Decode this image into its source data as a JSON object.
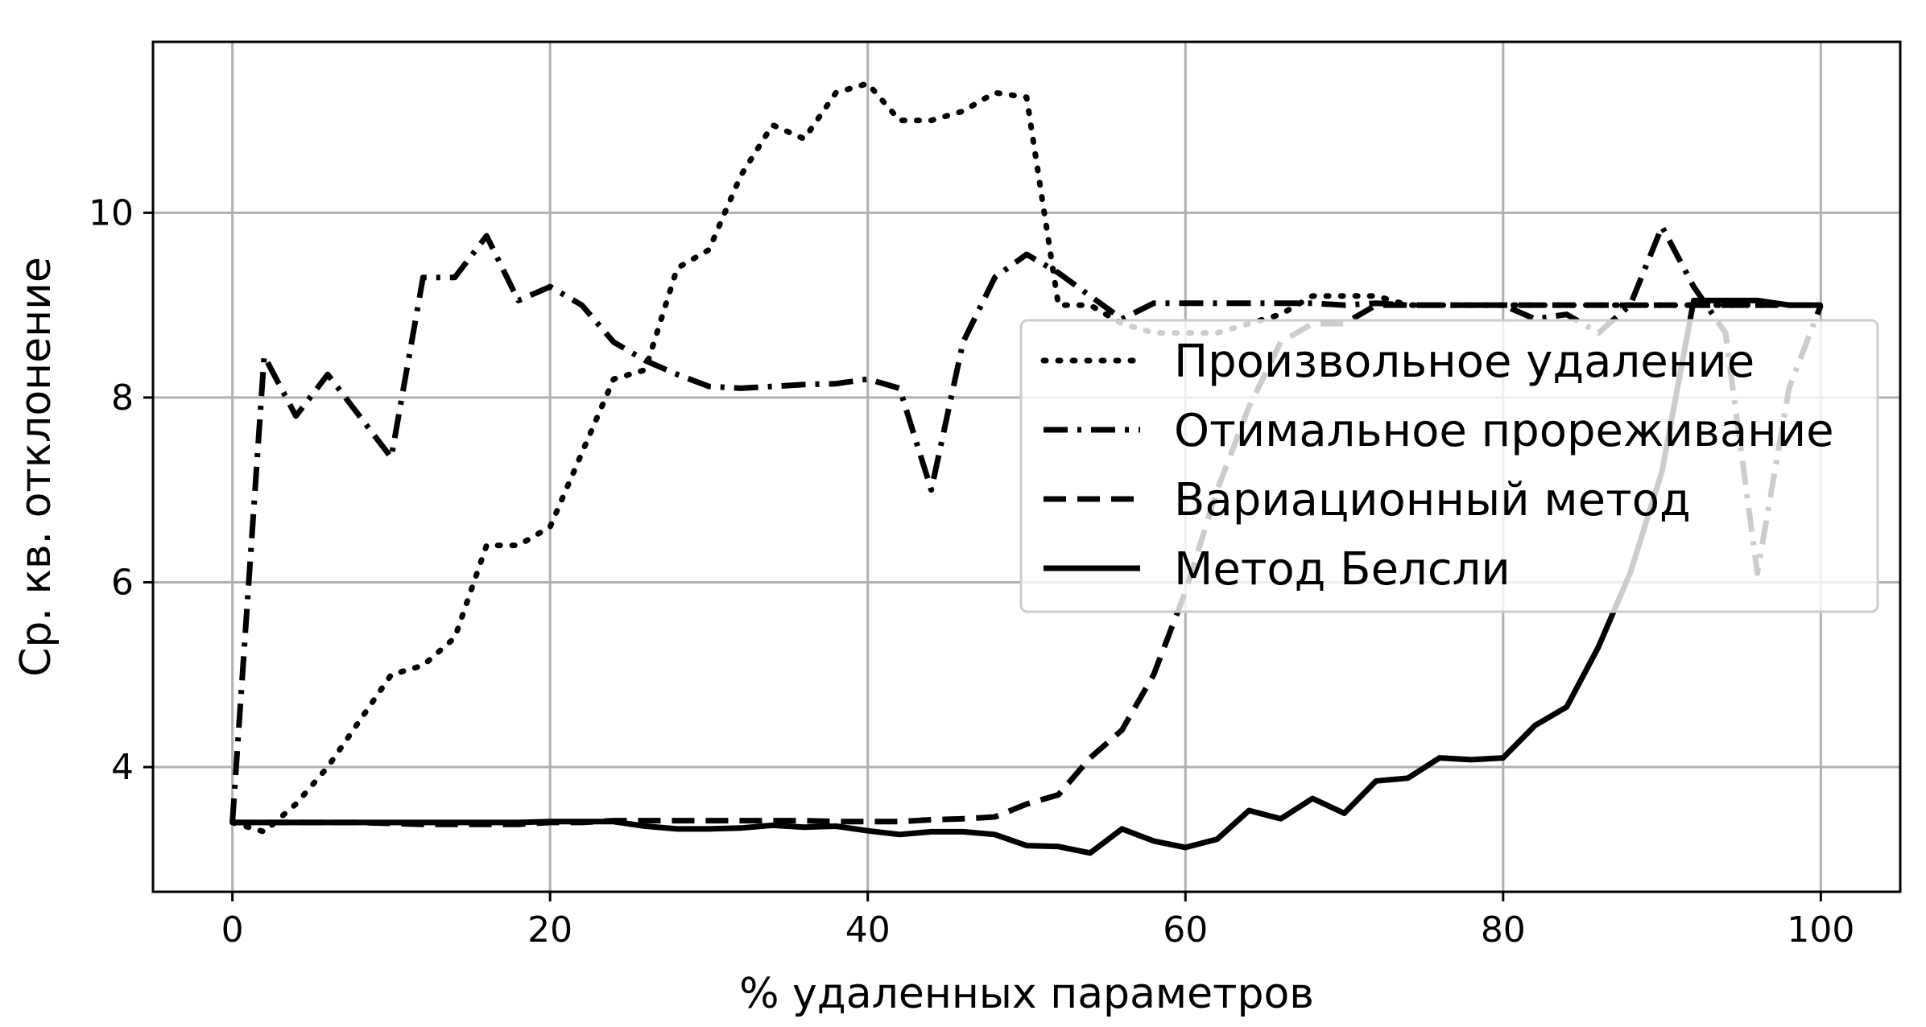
{
  "chart_data": {
    "type": "line",
    "title": "",
    "xlabel": "% удаленных параметров",
    "ylabel": "Ср. кв. отклонение",
    "xlim": [
      -5,
      105
    ],
    "ylim": [
      2.65,
      11.85
    ],
    "xticks": [
      0,
      20,
      40,
      60,
      80,
      100
    ],
    "yticks": [
      4,
      6,
      8,
      10
    ],
    "grid": true,
    "legend_position": "center-right",
    "line_color": "#000000",
    "grid_color": "#b0b0b0",
    "x": [
      0,
      2,
      4,
      6,
      8,
      10,
      12,
      14,
      16,
      18,
      20,
      22,
      24,
      26,
      28,
      30,
      32,
      34,
      36,
      38,
      40,
      42,
      44,
      46,
      48,
      50,
      52,
      54,
      56,
      58,
      60,
      62,
      64,
      66,
      68,
      70,
      72,
      74,
      76,
      78,
      80,
      82,
      84,
      86,
      88,
      90,
      92,
      94,
      96,
      98,
      100
    ],
    "series": [
      {
        "name": "Произвольное удаление",
        "style": "dotted",
        "values": [
          3.4,
          3.3,
          3.6,
          4.0,
          4.5,
          5.0,
          5.1,
          5.4,
          6.4,
          6.4,
          6.6,
          7.4,
          8.2,
          8.3,
          9.4,
          9.6,
          10.4,
          10.95,
          10.8,
          11.3,
          11.4,
          11.0,
          11.0,
          11.1,
          11.3,
          11.25,
          9.0,
          9.0,
          8.8,
          8.7,
          8.7,
          8.7,
          8.8,
          8.9,
          9.1,
          9.1,
          9.1,
          9.0,
          9.0,
          9.0,
          9.0,
          9.0,
          9.0,
          9.0,
          9.0,
          9.0,
          9.0,
          9.0,
          9.0,
          9.0,
          9.0
        ]
      },
      {
        "name": "Отимальное прореживание",
        "style": "dashdot",
        "values": [
          3.4,
          8.45,
          7.8,
          8.25,
          7.8,
          7.35,
          9.3,
          9.3,
          9.75,
          9.05,
          9.2,
          9.0,
          8.6,
          8.4,
          8.25,
          8.12,
          8.1,
          8.12,
          8.14,
          8.15,
          8.2,
          8.1,
          7.0,
          8.6,
          9.3,
          9.55,
          9.35,
          9.1,
          8.85,
          9.02,
          9.02,
          9.02,
          9.02,
          9.02,
          9.02,
          9.0,
          9.02,
          9.0,
          9.0,
          9.0,
          9.0,
          8.85,
          8.9,
          8.7,
          9.0,
          9.85,
          9.2,
          8.7,
          6.1,
          8.1,
          9.0
        ]
      },
      {
        "name": "Вариационный метод",
        "style": "dashed",
        "values": [
          3.4,
          3.4,
          3.4,
          3.4,
          3.4,
          3.39,
          3.38,
          3.38,
          3.38,
          3.38,
          3.4,
          3.4,
          3.42,
          3.42,
          3.42,
          3.42,
          3.42,
          3.42,
          3.42,
          3.41,
          3.41,
          3.41,
          3.43,
          3.44,
          3.46,
          3.6,
          3.7,
          4.1,
          4.4,
          5.0,
          5.9,
          7.0,
          7.9,
          8.6,
          8.8,
          8.8,
          9.0,
          9.0,
          9.0,
          9.0,
          9.0,
          9.0,
          9.0,
          9.0,
          9.0,
          9.0,
          9.0,
          9.0,
          9.0,
          9.0,
          9.0
        ]
      },
      {
        "name": "Метод Белсли",
        "style": "solid",
        "values": [
          3.4,
          3.4,
          3.4,
          3.4,
          3.4,
          3.4,
          3.4,
          3.4,
          3.4,
          3.4,
          3.41,
          3.41,
          3.41,
          3.36,
          3.33,
          3.33,
          3.34,
          3.37,
          3.35,
          3.36,
          3.31,
          3.27,
          3.3,
          3.3,
          3.27,
          3.15,
          3.14,
          3.07,
          3.33,
          3.2,
          3.13,
          3.22,
          3.53,
          3.44,
          3.66,
          3.5,
          3.85,
          3.88,
          4.1,
          4.08,
          4.1,
          4.45,
          4.65,
          5.3,
          6.1,
          7.2,
          9.05,
          9.05,
          9.05,
          9.0,
          9.0
        ]
      }
    ]
  }
}
